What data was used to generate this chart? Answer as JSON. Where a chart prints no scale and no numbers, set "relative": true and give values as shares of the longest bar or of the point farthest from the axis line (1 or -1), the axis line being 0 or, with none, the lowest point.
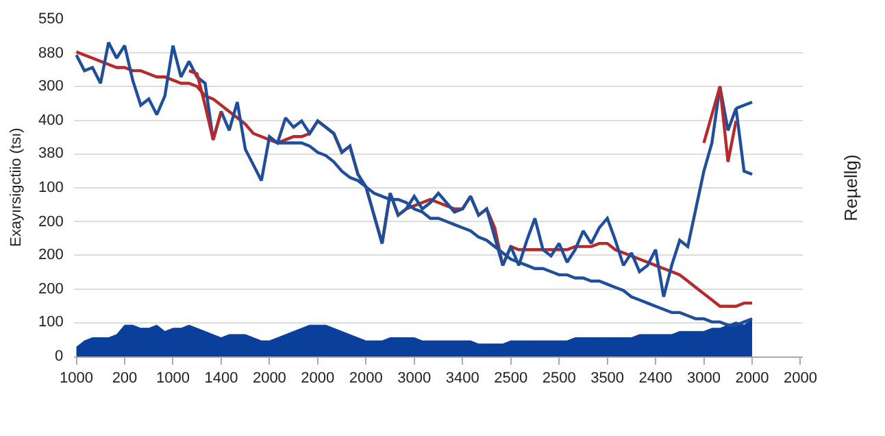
{
  "chart_data": {
    "type": "line",
    "ylabel": "Exayırsigctiio (tsı)",
    "y2label": "Reµellg)",
    "relative": true,
    "categories": [
      "1000",
      null,
      null,
      null,
      null,
      null,
      "200",
      null,
      null,
      null,
      null,
      null,
      "1000",
      null,
      null,
      null,
      null,
      null,
      "1400",
      null,
      null,
      null,
      null,
      null,
      "2000",
      null,
      null,
      null,
      null,
      null,
      "2000",
      null,
      null,
      null,
      null,
      null,
      "2000",
      null,
      null,
      null,
      null,
      null,
      "3000",
      null,
      null,
      null,
      null,
      null,
      "3400",
      null,
      null,
      null,
      null,
      null,
      "2500",
      null,
      null,
      null,
      null,
      null,
      "2500",
      null,
      null,
      null,
      null,
      null,
      "3500",
      null,
      null,
      null,
      null,
      null,
      "2400",
      null,
      null,
      null,
      null,
      null,
      "3000",
      null,
      null,
      null,
      null,
      null,
      "2000",
      null,
      null,
      null,
      null,
      null,
      "2000"
    ],
    "annotations": [
      "550",
      "880",
      "300",
      "400",
      "380",
      "100",
      "200",
      "200",
      "200",
      "100",
      "0"
    ],
    "grid": "y",
    "marker": "none",
    "line_style": "solid",
    "series": [
      {
        "type": "area",
        "color": "#0b3f9c",
        "values": [
          0.03,
          0.05,
          0.06,
          0.06,
          0.06,
          0.07,
          0.1,
          0.1,
          0.09,
          0.09,
          0.1,
          0.08,
          0.09,
          0.09,
          0.1,
          0.09,
          0.08,
          0.07,
          0.06,
          0.07,
          0.07,
          0.07,
          0.06,
          0.05,
          0.05,
          0.06,
          0.07,
          0.08,
          0.09,
          0.1,
          0.1,
          0.1,
          0.09,
          0.08,
          0.07,
          0.06,
          0.05,
          0.05,
          0.05,
          0.06,
          0.06,
          0.06,
          0.06,
          0.05,
          0.05,
          0.05,
          0.05,
          0.05,
          0.05,
          0.05,
          0.04,
          0.04,
          0.04,
          0.04,
          0.05,
          0.05,
          0.05,
          0.05,
          0.05,
          0.05,
          0.05,
          0.05,
          0.06,
          0.06,
          0.06,
          0.06,
          0.06,
          0.06,
          0.06,
          0.06,
          0.07,
          0.07,
          0.07,
          0.07,
          0.07,
          0.08,
          0.08,
          0.08,
          0.08,
          0.09,
          0.09,
          0.1,
          0.11,
          0.1,
          0.12,
          null,
          null,
          null,
          null,
          null,
          null
        ]
      },
      {
        "color": "#b52a2a",
        "values": [
          0.97,
          0.96,
          0.95,
          0.94,
          0.93,
          0.92,
          0.92,
          0.91,
          0.91,
          0.9,
          0.89,
          0.89,
          0.88,
          0.87,
          0.87,
          0.86,
          0.83,
          0.82,
          0.8,
          0.78,
          0.76,
          0.74,
          0.71,
          0.7,
          0.69,
          0.68,
          0.69,
          0.7,
          0.7,
          0.71,
          0.75,
          0.73,
          0.71,
          0.65,
          0.67,
          0.58,
          0.54,
          0.45,
          0.36,
          0.52,
          0.45,
          0.47,
          0.48,
          0.49,
          0.5,
          0.49,
          0.48,
          0.47,
          0.47,
          0.51,
          0.45,
          0.47,
          0.41,
          0.29,
          0.35,
          0.34,
          0.34,
          0.34,
          0.34,
          0.34,
          0.34,
          0.34,
          0.35,
          0.35,
          0.35,
          0.36,
          0.36,
          0.34,
          0.33,
          0.32,
          0.31,
          0.3,
          0.29,
          0.28,
          0.27,
          0.26,
          0.24,
          0.22,
          0.2,
          0.18,
          0.16,
          0.16,
          0.16,
          0.17,
          0.17,
          null,
          null,
          null,
          null,
          null,
          null
        ]
      },
      {
        "color": "#1f4e9c",
        "values": [
          null,
          null,
          null,
          null,
          null,
          null,
          null,
          null,
          null,
          null,
          null,
          null,
          null,
          null,
          null,
          null,
          null,
          null,
          null,
          null,
          null,
          null,
          null,
          null,
          null,
          0.68,
          0.68,
          0.68,
          0.68,
          0.67,
          0.65,
          0.64,
          0.62,
          0.59,
          0.57,
          0.56,
          0.54,
          0.52,
          0.51,
          0.5,
          0.5,
          0.49,
          0.47,
          0.46,
          0.44,
          0.44,
          0.43,
          0.42,
          0.41,
          0.4,
          0.38,
          0.37,
          0.35,
          0.33,
          0.31,
          0.3,
          0.29,
          0.28,
          0.28,
          0.27,
          0.26,
          0.26,
          0.25,
          0.25,
          0.24,
          0.24,
          0.23,
          0.22,
          0.21,
          0.19,
          0.18,
          0.17,
          0.16,
          0.15,
          0.14,
          0.14,
          0.13,
          0.12,
          0.12,
          0.11,
          0.11,
          0.1,
          0.1,
          0.11,
          0.12,
          null,
          null,
          null,
          null,
          null,
          null
        ]
      },
      {
        "color": "#1f4e9c",
        "values": [
          0.96,
          0.91,
          0.92,
          0.87,
          1.0,
          0.95,
          0.99,
          0.88,
          0.8,
          0.82,
          0.77,
          0.83,
          0.99,
          0.89,
          0.94,
          0.89,
          0.87,
          0.69,
          0.78,
          0.72,
          0.81,
          0.66,
          0.61,
          0.56,
          0.7,
          0.68,
          0.76,
          0.73,
          0.75,
          0.71,
          0.75,
          0.73,
          0.71,
          0.65,
          0.67,
          0.58,
          0.54,
          0.45,
          0.36,
          0.52,
          0.45,
          0.47,
          0.51,
          0.47,
          0.49,
          0.52,
          0.49,
          0.46,
          0.47,
          0.51,
          0.45,
          0.47,
          0.38,
          0.29,
          0.35,
          0.29,
          0.37,
          0.44,
          0.34,
          0.32,
          0.36,
          0.3,
          0.34,
          0.4,
          0.36,
          0.41,
          0.44,
          0.37,
          0.29,
          0.33,
          0.27,
          0.29,
          0.34,
          0.19,
          0.29,
          0.37,
          0.35,
          0.47,
          0.59,
          0.68,
          0.86,
          0.72,
          0.79,
          0.59,
          0.58,
          null,
          null,
          null,
          null,
          null,
          null
        ]
      },
      {
        "color": "#1f4e9c",
        "values": [
          null,
          null,
          null,
          null,
          null,
          null,
          null,
          null,
          null,
          null,
          null,
          null,
          null,
          null,
          null,
          null,
          null,
          null,
          null,
          null,
          null,
          null,
          null,
          null,
          null,
          null,
          null,
          null,
          null,
          null,
          null,
          null,
          null,
          null,
          null,
          null,
          null,
          null,
          null,
          null,
          null,
          null,
          null,
          null,
          null,
          null,
          null,
          null,
          null,
          null,
          null,
          null,
          null,
          null,
          null,
          null,
          null,
          null,
          null,
          null,
          null,
          null,
          null,
          null,
          null,
          null,
          null,
          null,
          null,
          null,
          null,
          null,
          null,
          null,
          null,
          null,
          null,
          null,
          null,
          null,
          null,
          null,
          0.79,
          0.8,
          0.81,
          null,
          null,
          null,
          null,
          null,
          null
        ]
      },
      {
        "color": "#b52a2a",
        "values": [
          null,
          null,
          null,
          null,
          null,
          null,
          null,
          null,
          null,
          null,
          null,
          null,
          null,
          null,
          0.91,
          0.9,
          0.8,
          0.69,
          0.78,
          null,
          null,
          null,
          null,
          null,
          null,
          null,
          null,
          null,
          null,
          null,
          null,
          null,
          null,
          null,
          null,
          null,
          null,
          null,
          null,
          null,
          null,
          null,
          null,
          null,
          null,
          null,
          null,
          null,
          null,
          null,
          null,
          null,
          null,
          null,
          null,
          null,
          null,
          null,
          null,
          null,
          null,
          null,
          null,
          null,
          null,
          null,
          null,
          null,
          null,
          null,
          null,
          null,
          null,
          null,
          null,
          null,
          null,
          null,
          0.68,
          0.77,
          0.86,
          0.62,
          0.75,
          null,
          null,
          null,
          null,
          null,
          null,
          null,
          null
        ]
      }
    ]
  }
}
